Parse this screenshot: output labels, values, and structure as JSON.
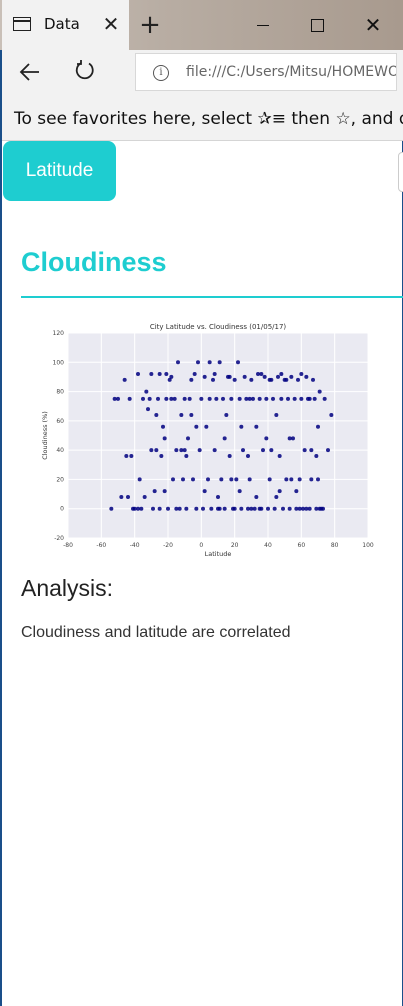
{
  "browser": {
    "tab_title": "Data",
    "tab_close": "✕",
    "new_tab": "+",
    "window_close": "✕",
    "url": "file:///C:/Users/Mitsu/HOMEWORK",
    "favorites_text": "To see favorites here, select ✰≡ then ☆, and drag"
  },
  "page": {
    "nav_label": "Latitude",
    "heading": "Cloudiness",
    "analysis_heading": "Analysis:",
    "analysis_text": "Cloudiness and latitude are correlated"
  },
  "icons": {
    "tab": "page-icon",
    "back": "back-arrow-icon",
    "refresh": "refresh-icon",
    "info": "info-icon"
  },
  "colors": {
    "accent": "#1ecdd0",
    "marker": "#000080",
    "plot_bg": "#eaeaf2"
  },
  "chart_data": {
    "type": "scatter",
    "title": "City Latitude vs. Cloudiness (01/05/17)",
    "xlabel": "Latitude",
    "ylabel": "Cloudiness (%)",
    "xlim": [
      -80,
      100
    ],
    "ylim": [
      -20,
      120
    ],
    "xticks": [
      -80,
      -60,
      -40,
      -20,
      0,
      20,
      40,
      60,
      80,
      100
    ],
    "yticks": [
      -20,
      0,
      20,
      40,
      60,
      80,
      100,
      120
    ],
    "grid": true,
    "series": [
      {
        "points": [
          [
            -54,
            0
          ],
          [
            -52,
            75
          ],
          [
            -50,
            75
          ],
          [
            -46,
            88
          ],
          [
            -45,
            36
          ],
          [
            -44,
            8
          ],
          [
            -43,
            75
          ],
          [
            -42,
            36
          ],
          [
            -40,
            0
          ],
          [
            -38,
            0
          ],
          [
            -37,
            20
          ],
          [
            -36,
            0
          ],
          [
            -35,
            75
          ],
          [
            -34,
            8
          ],
          [
            -33,
            80
          ],
          [
            -32,
            68
          ],
          [
            -31,
            75
          ],
          [
            -30,
            92
          ],
          [
            -29,
            0
          ],
          [
            -28,
            12
          ],
          [
            -27,
            40
          ],
          [
            -26,
            75
          ],
          [
            -25,
            0
          ],
          [
            -24,
            36
          ],
          [
            -23,
            56
          ],
          [
            -22,
            48
          ],
          [
            -21,
            75
          ],
          [
            -20,
            0
          ],
          [
            -19,
            88
          ],
          [
            -18,
            90
          ],
          [
            -17,
            20
          ],
          [
            -16,
            75
          ],
          [
            -15,
            40
          ],
          [
            -14,
            100
          ],
          [
            -13,
            0
          ],
          [
            -12,
            64
          ],
          [
            -11,
            20
          ],
          [
            -10,
            75
          ],
          [
            -9,
            0
          ],
          [
            -8,
            48
          ],
          [
            -7,
            75
          ],
          [
            -6,
            88
          ],
          [
            -5,
            20
          ],
          [
            -4,
            92
          ],
          [
            -3,
            0
          ],
          [
            -2,
            100
          ],
          [
            -1,
            40
          ],
          [
            0,
            75
          ],
          [
            1,
            0
          ],
          [
            2,
            90
          ],
          [
            3,
            56
          ],
          [
            4,
            20
          ],
          [
            5,
            75
          ],
          [
            6,
            0
          ],
          [
            7,
            88
          ],
          [
            8,
            40
          ],
          [
            9,
            75
          ],
          [
            10,
            0
          ],
          [
            11,
            100
          ],
          [
            12,
            20
          ],
          [
            13,
            75
          ],
          [
            14,
            0
          ],
          [
            15,
            64
          ],
          [
            16,
            90
          ],
          [
            17,
            36
          ],
          [
            18,
            75
          ],
          [
            19,
            0
          ],
          [
            20,
            88
          ],
          [
            21,
            20
          ],
          [
            22,
            100
          ],
          [
            23,
            75
          ],
          [
            24,
            0
          ],
          [
            25,
            40
          ],
          [
            26,
            90
          ],
          [
            27,
            75
          ],
          [
            28,
            0
          ],
          [
            29,
            20
          ],
          [
            30,
            88
          ],
          [
            31,
            75
          ],
          [
            32,
            0
          ],
          [
            33,
            56
          ],
          [
            34,
            92
          ],
          [
            35,
            75
          ],
          [
            36,
            0
          ],
          [
            37,
            40
          ],
          [
            38,
            90
          ],
          [
            39,
            75
          ],
          [
            40,
            0
          ],
          [
            41,
            20
          ],
          [
            42,
            88
          ],
          [
            43,
            75
          ],
          [
            44,
            0
          ],
          [
            45,
            64
          ],
          [
            46,
            90
          ],
          [
            47,
            36
          ],
          [
            48,
            75
          ],
          [
            49,
            0
          ],
          [
            50,
            88
          ],
          [
            51,
            20
          ],
          [
            52,
            75
          ],
          [
            53,
            0
          ],
          [
            54,
            90
          ],
          [
            55,
            48
          ],
          [
            56,
            75
          ],
          [
            57,
            0
          ],
          [
            58,
            88
          ],
          [
            59,
            20
          ],
          [
            60,
            75
          ],
          [
            61,
            0
          ],
          [
            62,
            40
          ],
          [
            63,
            90
          ],
          [
            64,
            75
          ],
          [
            65,
            0
          ],
          [
            66,
            20
          ],
          [
            67,
            88
          ],
          [
            68,
            75
          ],
          [
            69,
            0
          ],
          [
            70,
            56
          ],
          [
            71,
            80
          ],
          [
            72,
            0
          ],
          [
            74,
            75
          ],
          [
            76,
            40
          ],
          [
            78,
            64
          ],
          [
            -38,
            92
          ],
          [
            -25,
            92
          ],
          [
            -18,
            75
          ],
          [
            -12,
            40
          ],
          [
            -6,
            64
          ],
          [
            2,
            12
          ],
          [
            8,
            92
          ],
          [
            14,
            48
          ],
          [
            18,
            20
          ],
          [
            24,
            56
          ],
          [
            30,
            0
          ],
          [
            36,
            92
          ],
          [
            42,
            40
          ],
          [
            48,
            92
          ],
          [
            54,
            20
          ],
          [
            60,
            92
          ],
          [
            66,
            40
          ],
          [
            70,
            20
          ],
          [
            -30,
            40
          ],
          [
            -22,
            12
          ],
          [
            -15,
            0
          ],
          [
            -9,
            36
          ],
          [
            -3,
            56
          ],
          [
            5,
            100
          ],
          [
            11,
            0
          ],
          [
            17,
            90
          ],
          [
            23,
            12
          ],
          [
            29,
            75
          ],
          [
            35,
            0
          ],
          [
            41,
            88
          ],
          [
            47,
            12
          ],
          [
            53,
            48
          ],
          [
            59,
            0
          ],
          [
            65,
            75
          ],
          [
            71,
            0
          ],
          [
            -48,
            8
          ],
          [
            -41,
            0
          ],
          [
            -27,
            64
          ],
          [
            -21,
            92
          ],
          [
            -10,
            40
          ],
          [
            10,
            8
          ],
          [
            20,
            0
          ],
          [
            28,
            36
          ],
          [
            33,
            8
          ],
          [
            39,
            48
          ],
          [
            45,
            8
          ],
          [
            51,
            88
          ],
          [
            57,
            12
          ],
          [
            63,
            0
          ],
          [
            69,
            36
          ],
          [
            73,
            0
          ]
        ]
      }
    ]
  }
}
